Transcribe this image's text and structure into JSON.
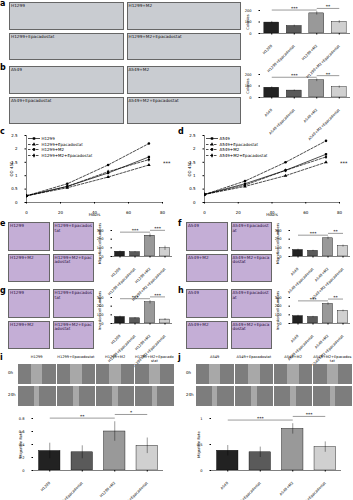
{
  "chart_data": [
    {
      "type": "bar",
      "title": "a",
      "ylabel": "Colonies",
      "categories": [
        "H1299",
        "H1299+Epacadostat",
        "H1299+M2",
        "H1299+M2+Epacadostat"
      ],
      "values": [
        95,
        65,
        175,
        100
      ],
      "errors": [
        10,
        8,
        15,
        12
      ],
      "colors": [
        "#222222",
        "#5a5a5a",
        "#999999",
        "#d0d0d0"
      ],
      "ylim": [
        0,
        200
      ],
      "yticks": [
        0,
        100,
        200
      ],
      "significance": [
        {
          "from": "H1299",
          "to": "H1299+M2",
          "label": "***"
        },
        {
          "from": "H1299+M2",
          "to": "H1299+M2+Epacadostat",
          "label": "**"
        }
      ],
      "image_labels": [
        "H1299",
        "H1299+M2",
        "H1299+Epacadostat",
        "H1299+M2+Epacadostat"
      ]
    },
    {
      "type": "bar",
      "title": "b",
      "ylabel": "Colonies",
      "categories": [
        "A549",
        "A549+Epacadostat",
        "A549+M2",
        "A549+M2+Epacadostat"
      ],
      "values": [
        85,
        60,
        150,
        90
      ],
      "errors": [
        8,
        6,
        12,
        10
      ],
      "colors": [
        "#222222",
        "#5a5a5a",
        "#999999",
        "#d0d0d0"
      ],
      "ylim": [
        0,
        200
      ],
      "yticks": [
        0,
        100,
        200
      ],
      "significance": [
        {
          "from": "A549",
          "to": "A549+M2",
          "label": "***"
        },
        {
          "from": "A549+M2",
          "to": "A549+M2+Epacadostat",
          "label": "**"
        }
      ],
      "image_labels": [
        "A549",
        "A549+M2",
        "A549+Epacadostat",
        "A549+M2+Epacadostat"
      ]
    },
    {
      "type": "line",
      "title": "c",
      "xlabel": "Hours",
      "ylabel": "OD 450",
      "x": [
        0,
        24,
        48,
        72
      ],
      "xlim": [
        0,
        80
      ],
      "xticks": [
        0,
        20,
        40,
        60,
        80
      ],
      "ylim": [
        0,
        2.5
      ],
      "yticks": [
        0,
        0.5,
        1,
        1.5,
        2,
        2.5
      ],
      "legend": "top-left",
      "annotations": [
        "***"
      ],
      "series": [
        {
          "name": "H1299",
          "color": "#000000",
          "marker": "square",
          "line_style": "solid",
          "values": [
            0.25,
            0.6,
            1.1,
            1.7
          ]
        },
        {
          "name": "H1299+Epacadostat",
          "color": "#000000",
          "marker": "triangle",
          "line_style": "dashed",
          "values": [
            0.25,
            0.55,
            0.95,
            1.4
          ]
        },
        {
          "name": "H1299+M2",
          "color": "#000000",
          "marker": "circle",
          "line_style": "dashed",
          "values": [
            0.25,
            0.7,
            1.4,
            2.2
          ]
        },
        {
          "name": "H1299+M2+Epacadostat",
          "color": "#000000",
          "marker": "diamond",
          "line_style": "dashed",
          "values": [
            0.25,
            0.6,
            1.15,
            1.6
          ]
        }
      ]
    },
    {
      "type": "line",
      "title": "d",
      "xlabel": "Hours",
      "ylabel": "OD 450",
      "x": [
        0,
        24,
        48,
        72
      ],
      "xlim": [
        0,
        80
      ],
      "xticks": [
        0,
        20,
        40,
        60,
        80
      ],
      "ylim": [
        0,
        2.5
      ],
      "yticks": [
        0,
        0.5,
        1,
        1.5,
        2,
        2.5
      ],
      "legend": "top-left",
      "annotations": [
        "***"
      ],
      "series": [
        {
          "name": "A549",
          "color": "#000000",
          "marker": "square",
          "line_style": "solid",
          "values": [
            0.3,
            0.7,
            1.2,
            1.8
          ]
        },
        {
          "name": "A549+Epacadostat",
          "color": "#000000",
          "marker": "triangle",
          "line_style": "dashed",
          "values": [
            0.3,
            0.6,
            1.0,
            1.5
          ]
        },
        {
          "name": "A549+M2",
          "color": "#000000",
          "marker": "circle",
          "line_style": "dashed",
          "values": [
            0.3,
            0.8,
            1.5,
            2.3
          ]
        },
        {
          "name": "A549+M2+Epacadostat",
          "color": "#000000",
          "marker": "diamond",
          "line_style": "dashed",
          "values": [
            0.3,
            0.65,
            1.2,
            1.7
          ]
        }
      ]
    },
    {
      "type": "bar",
      "title": "e",
      "ylabel": "Migration cell numbers",
      "categories": [
        "H1299",
        "H1299+Epacadostat",
        "H1299+M2",
        "H1299+M2+Epacadostat"
      ],
      "values": [
        55,
        50,
        240,
        95
      ],
      "errors": [
        8,
        6,
        20,
        25
      ],
      "colors": [
        "#222222",
        "#5a5a5a",
        "#999999",
        "#d0d0d0"
      ],
      "ylim": [
        0,
        300
      ],
      "yticks": [
        0,
        100,
        200,
        300
      ],
      "significance": [
        {
          "from": "H1299",
          "to": "H1299+M2",
          "label": "***"
        },
        {
          "from": "H1299+M2",
          "to": "H1299+M2+Epacadostat",
          "label": "***"
        }
      ],
      "image_labels": [
        "H1299",
        "H1299+Epacadostat",
        "H1299+M2",
        "H1299+M2+Epacadostat"
      ]
    },
    {
      "type": "bar",
      "title": "f",
      "ylabel": "Migration cell numbers",
      "categories": [
        "A549",
        "A549+Epacadostat",
        "A549+M2",
        "A549+M2+Epacadostat"
      ],
      "values": [
        75,
        65,
        210,
        120
      ],
      "errors": [
        10,
        8,
        15,
        12
      ],
      "colors": [
        "#222222",
        "#5a5a5a",
        "#999999",
        "#d0d0d0"
      ],
      "ylim": [
        0,
        300
      ],
      "yticks": [
        0,
        100,
        200,
        300
      ],
      "significance": [
        {
          "from": "A549",
          "to": "A549+M2",
          "label": "***"
        },
        {
          "from": "A549+M2",
          "to": "A549+M2+Epacadostat",
          "label": "**"
        }
      ],
      "image_labels": [
        "A549",
        "A549+Epacadostat",
        "A549+M2",
        "A549+M2+Epacadostat"
      ]
    },
    {
      "type": "bar",
      "title": "g",
      "ylabel": "Invasion cell numbers",
      "categories": [
        "H1299",
        "H1299+Epacadostat",
        "H1299+M2",
        "H1299+M2+Epacadostat"
      ],
      "values": [
        75,
        60,
        245,
        45
      ],
      "errors": [
        10,
        8,
        20,
        12
      ],
      "colors": [
        "#222222",
        "#5a5a5a",
        "#999999",
        "#d0d0d0"
      ],
      "ylim": [
        0,
        300
      ],
      "yticks": [
        0,
        100,
        200,
        300
      ],
      "significance": [
        {
          "from": "H1299",
          "to": "H1299+M2",
          "label": "***"
        },
        {
          "from": "H1299+M2",
          "to": "H1299+M2+Epacadostat",
          "label": "***"
        }
      ],
      "image_labels": [
        "H1299",
        "H1299+Epacadostat",
        "H1299+M2",
        "H1299+M2+Epacadostat"
      ]
    },
    {
      "type": "bar",
      "title": "h",
      "ylabel": "Invasion cell numbers",
      "categories": [
        "A549",
        "A549+Epacadostat",
        "A549+M2",
        "A549+M2+Epacadostat"
      ],
      "values": [
        85,
        75,
        225,
        145
      ],
      "errors": [
        10,
        8,
        15,
        10
      ],
      "colors": [
        "#222222",
        "#5a5a5a",
        "#999999",
        "#d0d0d0"
      ],
      "ylim": [
        0,
        300
      ],
      "yticks": [
        0,
        100,
        200,
        300
      ],
      "significance": [
        {
          "from": "A549",
          "to": "A549+M2",
          "label": "***"
        },
        {
          "from": "A549+M2",
          "to": "A549+M2+Epacadostat",
          "label": "**"
        }
      ],
      "image_labels": [
        "A549",
        "A549+Epacadostat",
        "A549+M2",
        "A549+M2+Epacadostat"
      ]
    },
    {
      "type": "bar",
      "title": "i",
      "ylabel": "Migration Rate",
      "categories": [
        "H1299",
        "H1299+Epacadostat",
        "H1299+M2",
        "H1299+M2+Epacadostat"
      ],
      "values": [
        0.3,
        0.28,
        0.6,
        0.38
      ],
      "errors": [
        0.12,
        0.1,
        0.15,
        0.12
      ],
      "colors": [
        "#222222",
        "#5a5a5a",
        "#999999",
        "#d0d0d0"
      ],
      "ylim": [
        0,
        0.8
      ],
      "yticks": [
        0,
        0.2,
        0.4,
        0.6,
        0.8
      ],
      "significance": [
        {
          "from": "H1299",
          "to": "H1299+M2",
          "label": "**"
        },
        {
          "from": "H1299+M2",
          "to": "H1299+M2+Epacadostat",
          "label": "*"
        }
      ],
      "image_labels": [
        "H1299",
        "H1299+Epacadostat",
        "H1299+M2",
        "H1299+M2+Epacadostat"
      ],
      "image_rows": [
        "0h",
        "24h"
      ]
    },
    {
      "type": "bar",
      "title": "j",
      "ylabel": "Migration Rate",
      "categories": [
        "A549",
        "A549+Epacadostat",
        "A549+M2",
        "A549+M2+Epacadostat"
      ],
      "values": [
        0.38,
        0.35,
        0.8,
        0.45
      ],
      "errors": [
        0.1,
        0.1,
        0.1,
        0.1
      ],
      "colors": [
        "#222222",
        "#5a5a5a",
        "#999999",
        "#d0d0d0"
      ],
      "ylim": [
        0,
        1
      ],
      "yticks": [
        0,
        0.5,
        1
      ],
      "significance": [
        {
          "from": "A549",
          "to": "A549+M2",
          "label": "***"
        },
        {
          "from": "A549+M2",
          "to": "A549+M2+Epacadostat",
          "label": "***"
        }
      ],
      "image_labels": [
        "A549",
        "A549+Epacadostat",
        "A549+M2",
        "A549+M2+Epacadostat"
      ],
      "image_rows": [
        "0h",
        "24h"
      ]
    }
  ]
}
